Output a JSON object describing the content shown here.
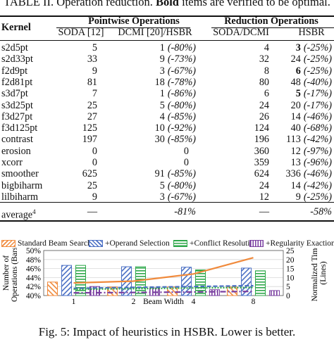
{
  "table": {
    "caption_prefix": "TABLE II. Operation reduction.",
    "caption_bold": "Bold",
    "caption_suffix": "items are verified to be optimal.",
    "group_headers": {
      "pointwise": "Pointwise Operations",
      "reduction": "Reduction Operations"
    },
    "column_headers": [
      "Kernel",
      "SODA [12]",
      "DCMI [20]/HSBR",
      "SODA/DCMI",
      "HSBR"
    ],
    "rows": [
      {
        "kernel": "s2d5pt",
        "soda": "5",
        "dcmi_hsbr_val": "1",
        "dcmi_hsbr_pct": "(-80%)",
        "soda_dcmi": "4",
        "hsbr_val": "3",
        "hsbr_pct": "(-25%)",
        "hsbr_bold": true
      },
      {
        "kernel": "s2d33pt",
        "soda": "33",
        "dcmi_hsbr_val": "9",
        "dcmi_hsbr_pct": "(-73%)",
        "soda_dcmi": "32",
        "hsbr_val": "24",
        "hsbr_pct": "(-25%)",
        "hsbr_bold": false
      },
      {
        "kernel": "f2d9pt",
        "soda": "9",
        "dcmi_hsbr_val": "3",
        "dcmi_hsbr_pct": "(-67%)",
        "soda_dcmi": "8",
        "hsbr_val": "6",
        "hsbr_pct": "(-25%)",
        "hsbr_bold": true
      },
      {
        "kernel": "f2d81pt",
        "soda": "81",
        "dcmi_hsbr_val": "18",
        "dcmi_hsbr_pct": "(-78%)",
        "soda_dcmi": "80",
        "hsbr_val": "48",
        "hsbr_pct": "(-40%)",
        "hsbr_bold": false
      },
      {
        "kernel": "s3d7pt",
        "soda": "7",
        "dcmi_hsbr_val": "1",
        "dcmi_hsbr_pct": "(-86%)",
        "soda_dcmi": "6",
        "hsbr_val": "5",
        "hsbr_pct": "(-17%)",
        "hsbr_bold": true
      },
      {
        "kernel": "s3d25pt",
        "soda": "25",
        "dcmi_hsbr_val": "5",
        "dcmi_hsbr_pct": "(-80%)",
        "soda_dcmi": "24",
        "hsbr_val": "20",
        "hsbr_pct": "(-17%)",
        "hsbr_bold": false
      },
      {
        "kernel": "f3d27pt",
        "soda": "27",
        "dcmi_hsbr_val": "4",
        "dcmi_hsbr_pct": "(-85%)",
        "soda_dcmi": "26",
        "hsbr_val": "14",
        "hsbr_pct": "(-46%)",
        "hsbr_bold": false
      },
      {
        "kernel": "f3d125pt",
        "soda": "125",
        "dcmi_hsbr_val": "10",
        "dcmi_hsbr_pct": "(-92%)",
        "soda_dcmi": "124",
        "hsbr_val": "40",
        "hsbr_pct": "(-68%)",
        "hsbr_bold": false
      },
      {
        "kernel": "contrast",
        "soda": "197",
        "dcmi_hsbr_val": "30",
        "dcmi_hsbr_pct": "(-85%)",
        "soda_dcmi": "196",
        "hsbr_val": "113",
        "hsbr_pct": "(-42%)",
        "hsbr_bold": false
      },
      {
        "kernel": "erosion",
        "soda": "0",
        "dcmi_hsbr_val": "0",
        "dcmi_hsbr_pct": "",
        "soda_dcmi": "360",
        "hsbr_val": "12",
        "hsbr_pct": "(-97%)",
        "hsbr_bold": false
      },
      {
        "kernel": "xcorr",
        "soda": "0",
        "dcmi_hsbr_val": "0",
        "dcmi_hsbr_pct": "",
        "soda_dcmi": "359",
        "hsbr_val": "13",
        "hsbr_pct": "(-96%)",
        "hsbr_bold": false
      },
      {
        "kernel": "smoother",
        "soda": "625",
        "dcmi_hsbr_val": "91",
        "dcmi_hsbr_pct": "(-85%)",
        "soda_dcmi": "624",
        "hsbr_val": "336",
        "hsbr_pct": "(-46%)",
        "hsbr_bold": false
      },
      {
        "kernel": "bigbiharm",
        "soda": "25",
        "dcmi_hsbr_val": "5",
        "dcmi_hsbr_pct": "(-80%)",
        "soda_dcmi": "24",
        "hsbr_val": "14",
        "hsbr_pct": "(-42%)",
        "hsbr_bold": false
      },
      {
        "kernel": "lilbiharm",
        "soda": "9",
        "dcmi_hsbr_val": "3",
        "dcmi_hsbr_pct": "(-67%)",
        "soda_dcmi": "12",
        "hsbr_val": "9",
        "hsbr_pct": "(-25%)",
        "hsbr_bold": false
      }
    ],
    "average": {
      "label": "average",
      "sup": "4",
      "soda": "—",
      "dcmi_hsbr": "-81%",
      "soda_dcmi": "—",
      "hsbr": "-58%"
    }
  },
  "figure": {
    "caption": "Fig. 5: Impact of heuristics in HSBR. Lower is better.",
    "colors": {
      "standard": "#f08a3c",
      "operand": "#4a6fc4",
      "conflict": "#2ea84a",
      "regularity": "#7a3fa0"
    }
  },
  "chart_data": {
    "type": "bar",
    "categories": [
      "1",
      "2",
      "4",
      "8"
    ],
    "xlabel": "Beam Width",
    "ylabel": "Number of Operations (Bars)",
    "y2label": "Normalized Time (Lines)",
    "ylim": [
      40,
      50
    ],
    "y2lim": [
      0,
      25
    ],
    "yticks": [
      "40%",
      "42%",
      "44%",
      "46%",
      "48%",
      "50%"
    ],
    "y2ticks": [
      "0",
      "5",
      "10",
      "15",
      "20",
      "25"
    ],
    "legend": [
      "Standard Beam Search",
      "+Operand Selection",
      "+Conflict Resolution",
      "+Regularity Exaction"
    ],
    "legend_position": "top",
    "series": [
      {
        "name": "Standard Beam Search",
        "values": [
          43.0,
          41.9,
          41.9,
          41.9
        ],
        "line": [
          7,
          8,
          12,
          21
        ]
      },
      {
        "name": "+Operand Selection",
        "values": [
          46.7,
          46.4,
          46.3,
          46.1
        ],
        "line": [
          4,
          4.5,
          5,
          5.5
        ]
      },
      {
        "name": "+Conflict Resolution",
        "values": [
          46.7,
          46.4,
          45.7,
          45.5
        ],
        "line": [
          3.5,
          3.8,
          4.2,
          4.5
        ]
      },
      {
        "name": "+Regularity Exaction",
        "values": [
          42.0,
          41.7,
          41.3,
          41.1
        ],
        "line": [
          1.5,
          1.7,
          2.0,
          2.3
        ]
      }
    ]
  }
}
